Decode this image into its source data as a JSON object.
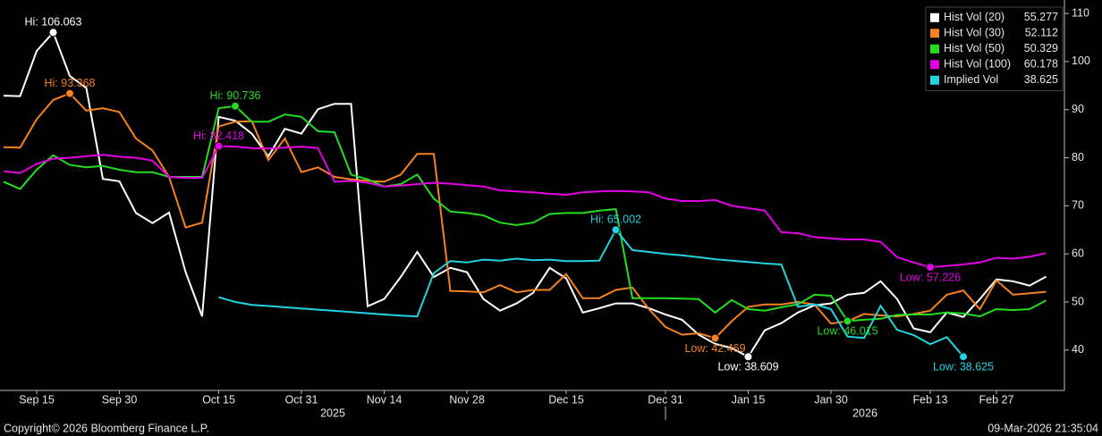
{
  "chart_data": {
    "type": "line",
    "categories": [
      null,
      null,
      "Sep 15",
      null,
      null,
      null,
      null,
      "Sep 30",
      null,
      null,
      null,
      null,
      null,
      "Oct 15",
      null,
      null,
      null,
      null,
      "Oct 31",
      null,
      null,
      null,
      null,
      "Nov 14",
      null,
      null,
      null,
      null,
      "Nov 28",
      null,
      null,
      null,
      null,
      null,
      "Dec 15",
      null,
      null,
      null,
      null,
      null,
      "Dec 31",
      null,
      null,
      null,
      null,
      "Jan 15",
      null,
      null,
      null,
      null,
      "Jan 30",
      null,
      null,
      null,
      null,
      null,
      "Feb 13",
      null,
      null,
      null,
      "Feb 27",
      null,
      null,
      null
    ],
    "years": [
      {
        "label": "2025"
      },
      {
        "label": "2026",
        "from": "Dec 31"
      }
    ],
    "ylim": [
      31.6,
      112.8
    ],
    "yticks": [
      40,
      50,
      60,
      70,
      80,
      90,
      100,
      110
    ],
    "series": [
      {
        "name": "Hist Vol (20)",
        "color": "#ffffff",
        "last_value": 55.277,
        "high": {
          "label": "Hi: 106.063"
        },
        "low": {
          "label": "Low: 38.609"
        },
        "values": [
          92.9,
          92.8,
          102.2,
          106.063,
          97,
          94.5,
          75.6,
          75.1,
          68.5,
          66.4,
          68.6,
          56.2,
          47,
          88.5,
          87.7,
          85,
          80.3,
          86,
          85,
          90.1,
          91.2,
          91.2,
          49.1,
          50.6,
          55.2,
          60.4,
          55.2,
          57.1,
          56.2,
          50.6,
          48.2,
          49.7,
          51.9,
          57.1,
          54.9,
          47.8,
          48.7,
          49.7,
          49.7,
          48.7,
          47.4,
          46.3,
          43.2,
          41.3,
          40.4,
          38.609,
          44.1,
          45.6,
          47.8,
          49.3,
          49.7,
          51.5,
          51.9,
          54.3,
          50.6,
          44.5,
          43.7,
          47.8,
          46.9,
          50.6,
          54.7,
          54.3,
          53.4,
          55.277
        ]
      },
      {
        "name": "Hist Vol (30)",
        "color": "#f58220",
        "last_value": 52.112,
        "high": {
          "label": "Hi: 93.368"
        },
        "low": {
          "label": "Low: 42.469"
        },
        "values": [
          82.2,
          82.1,
          88,
          92,
          93.368,
          89.8,
          90.3,
          89.5,
          84,
          81.5,
          76,
          65.5,
          66.5,
          86.5,
          87.5,
          87.6,
          79.5,
          84,
          77,
          78,
          76,
          75.5,
          75.2,
          75,
          76.5,
          80.8,
          80.8,
          52.3,
          52.2,
          52,
          53.5,
          52,
          52.5,
          52.5,
          55.8,
          50.8,
          50.8,
          52.5,
          53,
          48.5,
          44.8,
          43.2,
          43.5,
          42.469,
          46,
          49,
          49.5,
          49.5,
          50,
          49.5,
          45.5,
          46,
          47.5,
          47.2,
          47,
          47.5,
          48.2,
          51.5,
          52.4,
          48.5,
          54.5,
          51.5,
          51.8,
          52.112
        ]
      },
      {
        "name": "Hist Vol (50)",
        "color": "#22dd22",
        "last_value": 50.329,
        "high": {
          "label": "Hi: 90.736"
        },
        "low": {
          "label": "Low: 46.015"
        },
        "values": [
          75,
          73.5,
          77.5,
          80.5,
          78.5,
          78,
          78.3,
          77.5,
          77,
          77,
          76,
          76,
          76,
          90.3,
          90.736,
          87.5,
          87.5,
          89,
          88.5,
          85.5,
          85.3,
          76.5,
          75.5,
          74,
          74.5,
          76.5,
          71.5,
          68.8,
          68.5,
          68,
          66.5,
          66,
          66.5,
          68.3,
          68.5,
          68.5,
          69,
          69.3,
          50.8,
          50.8,
          50.8,
          50.7,
          50.6,
          47.8,
          50.4,
          48.5,
          48.2,
          48.9,
          49.5,
          51.5,
          51.3,
          46.015,
          46.3,
          46.5,
          47.3,
          47.4,
          47.4,
          47.8,
          47.6,
          47,
          48.5,
          48.3,
          48.5,
          50.329
        ]
      },
      {
        "name": "Hist Vol (100)",
        "color": "#e400e4",
        "last_value": 60.178,
        "high": {
          "label": "Hi: 82.418"
        },
        "low": {
          "label": "Low: 57.226"
        },
        "values": [
          77.2,
          76.8,
          78.7,
          79.8,
          80,
          80.3,
          80.6,
          80.2,
          80,
          79.4,
          76,
          75.8,
          75.8,
          82.418,
          82.3,
          82,
          81.9,
          82.1,
          82.3,
          82,
          75,
          75.2,
          74.8,
          74,
          74.2,
          74.5,
          74.8,
          74.6,
          74.3,
          74,
          73.2,
          73,
          72.8,
          72.5,
          72.3,
          72.8,
          73,
          73.1,
          73,
          72.8,
          71.5,
          71,
          71,
          71.2,
          70,
          69.5,
          69,
          64.5,
          64.3,
          63.5,
          63.2,
          63,
          63,
          62.5,
          59.3,
          58.2,
          57.226,
          57.5,
          57.8,
          58.2,
          59.2,
          59,
          59.4,
          60.178
        ]
      },
      {
        "name": "Implied Vol",
        "color": "#22d3e0",
        "last_value": 38.625,
        "high": {
          "label": "Hi: 65.002"
        },
        "low": {
          "label": "Low: 38.625"
        },
        "values": [
          null,
          null,
          null,
          null,
          null,
          null,
          null,
          null,
          null,
          null,
          null,
          null,
          null,
          51,
          50,
          49.4,
          49.15,
          48.9,
          48.65,
          48.4,
          48.15,
          47.9,
          47.65,
          47.4,
          47.15,
          47,
          56,
          58.5,
          58.2,
          58.8,
          58.6,
          59,
          58.7,
          58.8,
          58.5,
          58.5,
          58.6,
          65.002,
          60.8,
          60.4,
          60,
          59.7,
          59.3,
          58.9,
          58.6,
          58.3,
          58,
          57.8,
          49,
          49.5,
          48.5,
          42.8,
          42.5,
          49.2,
          44.2,
          43.1,
          41.2,
          42.7,
          38.625,
          null,
          null,
          null,
          null,
          null
        ]
      }
    ],
    "legend": "top-right",
    "source": "Copyright© 2026 Bloomberg Finance L.P.",
    "timestamp": "09-Mar-2026 21:35:04"
  }
}
